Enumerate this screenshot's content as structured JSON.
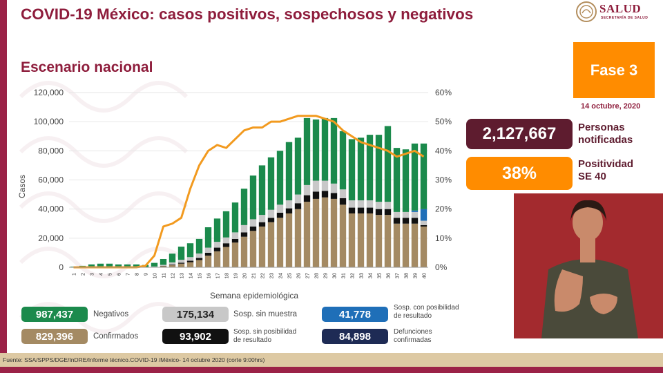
{
  "header": {
    "title": "COVID-19 México: casos positivos, sospechosos y negativos",
    "subtitle": "Escenario nacional",
    "logo_text": "SALUD",
    "logo_sub": "SECRETARÍA DE SALUD"
  },
  "side": {
    "phase": "Fase 3",
    "date": "14 octubre, 2020",
    "notified_value": "2,127,667",
    "notified_label_1": "Personas",
    "notified_label_2": "notificadas",
    "positivity_value": "38%",
    "positivity_label_1": "Positividad",
    "positivity_label_2": "SE 40"
  },
  "legend": [
    {
      "value": "987,437",
      "label": "Negativos",
      "color": "#1b8a4c"
    },
    {
      "value": "829,396",
      "label": "Confirmados",
      "color": "#a48a63"
    },
    {
      "value": "175,134",
      "label": "Sosp. sin muestra",
      "color": "#c8c8c8"
    },
    {
      "value": "93,902",
      "label_1": "Sosp. sin posibilidad",
      "label_2": "de resultado",
      "color": "#111111"
    },
    {
      "value": "41,778",
      "label_1": "Sosp. con posibilidad",
      "label_2": "de resultado",
      "color": "#1f6fb8"
    },
    {
      "value": "84,898",
      "label_1": "Defunciones",
      "label_2": "confirmadas",
      "color": "#1e2b55"
    }
  ],
  "footer": "Fuente: SSA/SPPS/DGE/InDRE/Informe técnico.COVID-19 /México- 14 octubre 2020 (corte 9:00hrs)",
  "colors": {
    "confirmed": "#a48a63",
    "unresolvable": "#111111",
    "no_sample": "#c8c8c8",
    "pending": "#1f6fb8",
    "negative": "#1b8a4c",
    "positivity_line": "#f29a1f"
  },
  "chart_data": {
    "type": "bar",
    "stacked": true,
    "xlabel": "Semana epidemiológica",
    "ylabel": "Casos",
    "ylim": [
      0,
      120000
    ],
    "yticks": [
      "0",
      "20,000",
      "40,000",
      "60,000",
      "80,000",
      "100,000",
      "120,000"
    ],
    "y2lim": [
      0,
      60
    ],
    "y2ticks": [
      "0%",
      "10%",
      "20%",
      "30%",
      "40%",
      "50%",
      "60%"
    ],
    "categories": [
      "1",
      "2",
      "3",
      "4",
      "5",
      "6",
      "7",
      "8",
      "9",
      "10",
      "11",
      "12",
      "13",
      "14",
      "15",
      "16",
      "17",
      "18",
      "19",
      "20",
      "21",
      "22",
      "23",
      "24",
      "25",
      "26",
      "27",
      "28",
      "29",
      "30",
      "31",
      "32",
      "33",
      "34",
      "35",
      "36",
      "37",
      "38",
      "39",
      "40"
    ],
    "series": [
      {
        "name": "Confirmados",
        "values": [
          0,
          0,
          0,
          0,
          0,
          0,
          0,
          0,
          10,
          200,
          800,
          1500,
          2500,
          3500,
          5000,
          8000,
          11000,
          14000,
          17000,
          21000,
          25000,
          28000,
          31000,
          34000,
          37000,
          40000,
          45000,
          47000,
          48000,
          47000,
          43000,
          37000,
          37000,
          37000,
          36000,
          36000,
          30000,
          30000,
          30000,
          28000
        ]
      },
      {
        "name": "Sosp. sin posibilidad de resultado",
        "values": [
          0,
          0,
          0,
          0,
          0,
          0,
          0,
          0,
          0,
          50,
          200,
          400,
          700,
          1000,
          1500,
          2000,
          2500,
          2500,
          2500,
          3000,
          3000,
          3000,
          3000,
          3500,
          3500,
          4000,
          4500,
          5000,
          4500,
          4000,
          4500,
          4000,
          4000,
          4000,
          4000,
          4000,
          4000,
          4000,
          4000,
          1000
        ]
      },
      {
        "name": "Sosp. sin muestra",
        "values": [
          0,
          0,
          0,
          0,
          0,
          0,
          0,
          0,
          100,
          300,
          700,
          1500,
          2000,
          2500,
          3000,
          3500,
          4000,
          4000,
          4500,
          5000,
          5000,
          5000,
          5500,
          5500,
          5500,
          6000,
          7000,
          7500,
          7000,
          6500,
          6000,
          5000,
          5000,
          5000,
          5000,
          5000,
          4000,
          4000,
          4000,
          3000
        ]
      },
      {
        "name": "Sosp. con posibilidad de resultado",
        "values": [
          0,
          0,
          0,
          0,
          0,
          0,
          0,
          0,
          0,
          0,
          0,
          0,
          0,
          0,
          0,
          0,
          0,
          0,
          0,
          0,
          0,
          0,
          0,
          0,
          0,
          0,
          0,
          0,
          0,
          0,
          0,
          0,
          0,
          0,
          0,
          0,
          0,
          0,
          1000,
          8000
        ]
      },
      {
        "name": "Negativos",
        "values": [
          500,
          1000,
          2000,
          2500,
          2500,
          2000,
          2000,
          2000,
          1500,
          2500,
          4000,
          6000,
          9000,
          9500,
          10000,
          14000,
          16000,
          18000,
          20500,
          25000,
          30000,
          34000,
          36000,
          37000,
          40000,
          39000,
          46000,
          42000,
          43000,
          45000,
          40000,
          42000,
          43000,
          45000,
          46000,
          52000,
          44000,
          43000,
          46000,
          45000
        ]
      }
    ],
    "line": {
      "name": "Positividad",
      "axis": "right",
      "values": [
        0,
        0,
        0,
        0,
        0,
        0,
        0,
        0,
        0.5,
        4,
        14,
        15,
        17,
        27,
        35,
        40,
        42,
        41,
        44,
        47,
        48,
        48,
        50,
        50,
        51,
        52,
        52,
        52,
        51,
        50,
        47,
        45,
        43,
        42,
        41,
        40,
        38,
        39,
        40,
        38
      ]
    }
  }
}
